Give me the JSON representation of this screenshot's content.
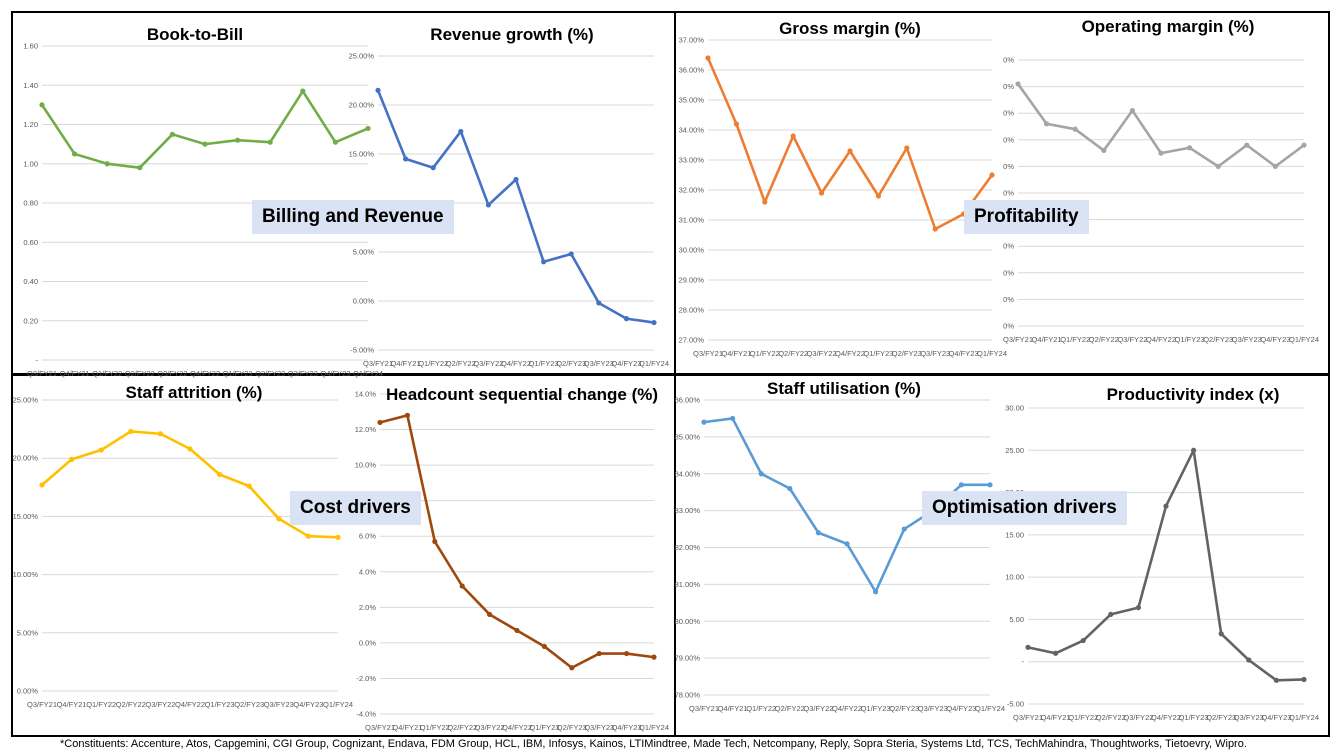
{
  "sections": [
    {
      "label": "Billing and Revenue"
    },
    {
      "label": "Profitability"
    },
    {
      "label": "Cost drivers"
    },
    {
      "label": "Optimisation drivers"
    }
  ],
  "footnote": "*Constituents: Accenture, Atos, Capgemini, CGI Group, Cognizant, Endava, FDM Group, HCL, IBM, Infosys, Kainos, LTIMindtree, Made Tech, Netcompany, Reply, Sopra Steria, Systems Ltd, TCS, TechMahindra, Thoughtworks, Tietoevry, Wipro.",
  "colors": {
    "green": "#70ad47",
    "blue": "#4472c4",
    "orange": "#ed7d31",
    "grey": "#a5a5a5",
    "yellow": "#ffc000",
    "brown": "#9e480e",
    "lightblue": "#5b9bd5",
    "darkgrey": "#636363"
  },
  "chart_data": [
    {
      "type": "line",
      "title": "Book-to-Bill",
      "color": "#70ad47",
      "x": [
        "Q3/FY21",
        "Q4/FY21",
        "Q1/FY22",
        "Q2/FY22",
        "Q3/FY22",
        "Q4/FY22",
        "Q1/FY23",
        "Q2/FY23",
        "Q3/FY23",
        "Q4/FY23",
        "Q1/FY24"
      ],
      "y_ticks": [
        "1.60",
        "1.40",
        "1.20",
        "1.00",
        "0.80",
        "0.60",
        "0.40",
        "0.20",
        "-"
      ],
      "ylim": [
        0,
        1.6
      ],
      "values": [
        1.3,
        1.05,
        1.0,
        0.98,
        1.15,
        1.1,
        1.12,
        1.11,
        1.37,
        1.11,
        1.18
      ]
    },
    {
      "type": "line",
      "title": "Revenue growth (%)",
      "color": "#4472c4",
      "x": [
        "Q3/FY21",
        "Q4/FY21",
        "Q1/FY22",
        "Q2/FY22",
        "Q3/FY22",
        "Q4/FY22",
        "Q1/FY23",
        "Q2/FY23",
        "Q3/FY23",
        "Q4/FY23",
        "Q1/FY24"
      ],
      "y_ticks": [
        "25.00%",
        "20.00%",
        "15.00%",
        "10.00%",
        "5.00%",
        "0.00%",
        "-5.00%"
      ],
      "ylim": [
        -5,
        25
      ],
      "values": [
        21.5,
        14.5,
        13.6,
        17.3,
        9.8,
        12.4,
        4.0,
        4.8,
        -0.2,
        -1.8,
        -2.2
      ]
    },
    {
      "type": "line",
      "title": "Gross margin (%)",
      "color": "#ed7d31",
      "x": [
        "Q3/FY21",
        "Q4/FY21",
        "Q1/FY22",
        "Q2/FY22",
        "Q3/FY22",
        "Q4/FY22",
        "Q1/FY23",
        "Q2/FY23",
        "Q3/FY23",
        "Q4/FY23",
        "Q1/FY24"
      ],
      "y_ticks": [
        "37.00%",
        "36.00%",
        "35.00%",
        "34.00%",
        "33.00%",
        "32.00%",
        "31.00%",
        "30.00%",
        "29.00%",
        "28.00%",
        "27.00%"
      ],
      "ylim": [
        27,
        37
      ],
      "values": [
        36.4,
        34.2,
        31.6,
        33.8,
        31.9,
        33.3,
        31.8,
        33.4,
        30.7,
        31.2,
        32.5
      ]
    },
    {
      "type": "line",
      "title": "Operating margin (%)",
      "color": "#a5a5a5",
      "x": [
        "Q3/FY21",
        "Q4/FY21",
        "Q1/FY22",
        "Q2/FY22",
        "Q3/FY22",
        "Q4/FY22",
        "Q1/FY23",
        "Q2/FY23",
        "Q3/FY23",
        "Q4/FY23",
        "Q1/FY24"
      ],
      "y_ticks": [
        "0%",
        "0%",
        "0%",
        "0%",
        "0%",
        "0%",
        "0%",
        "0%",
        "0%",
        "0%",
        "0%"
      ],
      "ylim": [
        0,
        10
      ],
      "values": [
        9.1,
        7.6,
        7.4,
        6.6,
        8.1,
        6.5,
        6.7,
        6.0,
        6.8,
        6.0,
        6.8
      ]
    },
    {
      "type": "line",
      "title": "Staff attrition (%)",
      "color": "#ffc000",
      "x": [
        "Q3/FY21",
        "Q4/FY21",
        "Q1/FY22",
        "Q2/FY22",
        "Q3/FY22",
        "Q4/FY22",
        "Q1/FY23",
        "Q2/FY23",
        "Q3/FY23",
        "Q4/FY23",
        "Q1/FY24"
      ],
      "y_ticks": [
        "25.00%",
        "20.00%",
        "15.00%",
        "10.00%",
        "5.00%",
        "0.00%"
      ],
      "ylim": [
        0,
        25
      ],
      "values": [
        17.7,
        19.9,
        20.7,
        22.3,
        22.1,
        20.8,
        18.6,
        17.6,
        14.8,
        13.3,
        13.2
      ]
    },
    {
      "type": "line",
      "title": "Headcount sequential change (%)",
      "color": "#9e480e",
      "x": [
        "Q3/FY21",
        "Q4/FY21",
        "Q1/FY22",
        "Q2/FY22",
        "Q3/FY22",
        "Q4/FY22",
        "Q1/FY23",
        "Q2/FY23",
        "Q3/FY23",
        "Q4/FY23",
        "Q1/FY24"
      ],
      "y_ticks": [
        "14.0%",
        "12.0%",
        "10.0%",
        "8.0%",
        "6.0%",
        "4.0%",
        "2.0%",
        "0.0%",
        "-2.0%",
        "-4.0%"
      ],
      "ylim": [
        -4,
        14
      ],
      "values": [
        12.4,
        12.8,
        5.7,
        3.2,
        1.6,
        0.7,
        -0.2,
        -1.4,
        -0.6,
        -0.6,
        -0.8
      ]
    },
    {
      "type": "line",
      "title": "Staff utilisation (%)",
      "color": "#5b9bd5",
      "x": [
        "Q3/FY21",
        "Q4/FY21",
        "Q1/FY22",
        "Q2/FY22",
        "Q3/FY22",
        "Q4/FY22",
        "Q1/FY23",
        "Q2/FY23",
        "Q3/FY23",
        "Q4/FY23",
        "Q1/FY24"
      ],
      "y_ticks": [
        "86.00%",
        "85.00%",
        "84.00%",
        "83.00%",
        "82.00%",
        "81.00%",
        "80.00%",
        "79.00%",
        "78.00%"
      ],
      "ylim": [
        78,
        86
      ],
      "values": [
        85.4,
        85.5,
        84.0,
        83.6,
        82.4,
        82.1,
        80.8,
        82.5,
        83.0,
        83.7,
        83.7
      ]
    },
    {
      "type": "line",
      "title": "Productivity index (x)",
      "color": "#636363",
      "x": [
        "Q3/FY21",
        "Q4/FY21",
        "Q1/FY22",
        "Q2/FY22",
        "Q3/FY22",
        "Q4/FY22",
        "Q1/FY23",
        "Q2/FY23",
        "Q3/FY23",
        "Q4/FY23",
        "Q1/FY24"
      ],
      "y_ticks": [
        "30.00",
        "25.00",
        "20.00",
        "15.00",
        "10.00",
        "5.00",
        "-",
        "-5.00"
      ],
      "ylim": [
        -5,
        30
      ],
      "values": [
        1.7,
        1.0,
        2.5,
        5.6,
        6.4,
        18.4,
        25.0,
        3.3,
        0.2,
        -2.2,
        -2.1
      ]
    }
  ]
}
